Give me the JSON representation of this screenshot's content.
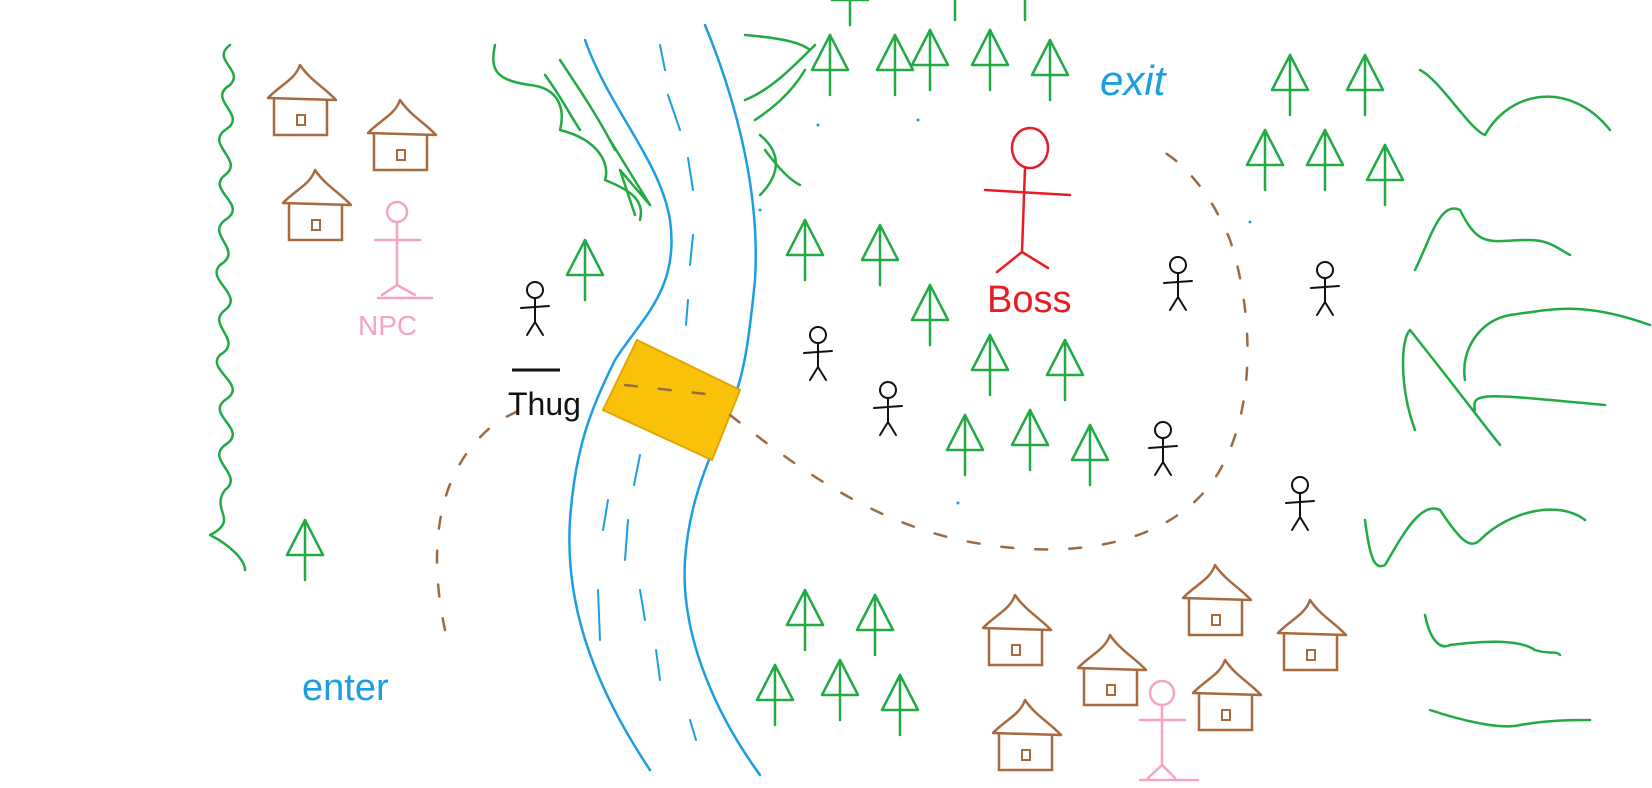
{
  "labels": {
    "exit": "exit",
    "enter": "enter",
    "boss": "Boss",
    "thug": "Thug",
    "npc": "NPC"
  },
  "colors": {
    "background": "#ffffff",
    "tree": "#22aa44",
    "house": "#a86a3e",
    "river": "#1b9fe0",
    "bridge": "#f9c10a",
    "path": "#9b6b45",
    "boss": "#e81c24",
    "npc": "#f5a3c7",
    "enemy": "#111111",
    "text_blue": "#1b9fe0"
  },
  "legend_icons": {
    "tree": "tree-icon",
    "house": "house-icon",
    "stick_figure": "stick-figure-icon",
    "bridge": "bridge-icon"
  }
}
